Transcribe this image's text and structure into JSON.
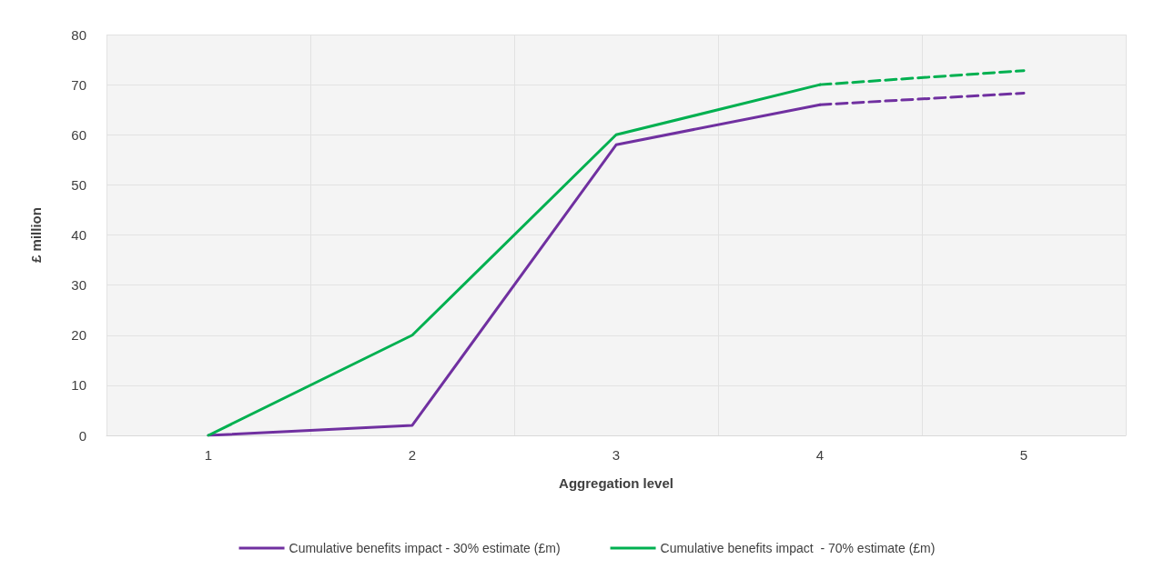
{
  "chart_data": {
    "type": "line",
    "xlabel": "Aggregation level",
    "ylabel": "£ million",
    "categories": [
      "1",
      "2",
      "3",
      "4",
      "5"
    ],
    "series": [
      {
        "name": "Cumulative benefits impact - 30% estimate (£m)",
        "color": "#7030a0",
        "values": [
          0,
          2,
          58,
          66,
          null
        ]
      },
      {
        "name": "Cumulative benefits impact  - 70% estimate (£m)",
        "color": "#00b050",
        "values": [
          0,
          20,
          60,
          70,
          null
        ]
      },
      {
        "color": "#7030a0",
        "line_style": "dashed",
        "values": [
          null,
          null,
          null,
          66,
          68.3
        ]
      },
      {
        "color": "#00b050",
        "line_style": "dashed",
        "values": [
          null,
          null,
          null,
          70,
          72.8
        ]
      }
    ],
    "ylim": [
      0,
      80
    ],
    "yticks": [
      0,
      10,
      20,
      30,
      40,
      50,
      60,
      70,
      80
    ],
    "grid": true,
    "legend": "bottom",
    "marker": "none",
    "line_style": "solid"
  }
}
